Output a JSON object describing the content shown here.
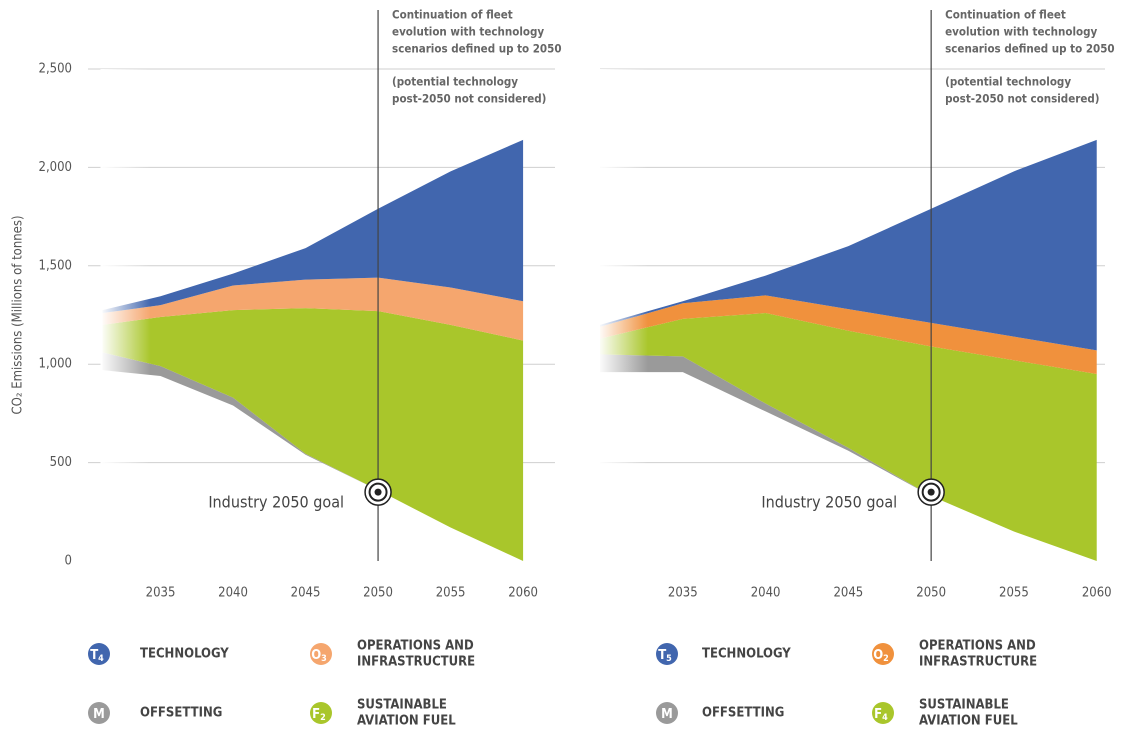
{
  "chart_data": [
    {
      "type": "stacked_area",
      "y_label": "CO₂ Emissions (Millions of tonnes)",
      "x": [
        2031,
        2035,
        2040,
        2045,
        2050,
        2055,
        2060
      ],
      "xlim": [
        2030,
        2062.2
      ],
      "xticks": [
        2035,
        2040,
        2045,
        2050,
        2055,
        2060
      ],
      "ylim": [
        0,
        2500
      ],
      "yticks": [
        0,
        500,
        {
          "value": 1000,
          "label": "1,000"
        },
        {
          "value": 1500,
          "label": "1,500"
        },
        {
          "value": 2000,
          "label": "2,000"
        },
        {
          "value": 2500,
          "label": "2,500"
        }
      ],
      "show_ytick_labels": true,
      "grid": true,
      "net_emissions": [
        970,
        940,
        790,
        540,
        360,
        170,
        0
      ],
      "series": [
        {
          "name": "OFFSETTING",
          "badge": "M",
          "color": "#9a9a9a",
          "values": [
            90,
            50,
            40,
            5,
            0,
            0,
            0
          ]
        },
        {
          "name": [
            "SUSTAINABLE",
            "AVIATION FUEL"
          ],
          "badge": "F",
          "badge_sub": "2",
          "color": "#a9c62b",
          "values": [
            140,
            250,
            445,
            740,
            910,
            1030,
            1120
          ]
        },
        {
          "name": [
            "OPERATIONS AND",
            "INFRASTRUCTURE"
          ],
          "badge": "O",
          "badge_sub": "3",
          "color": "#f5a66e",
          "values": [
            60,
            60,
            125,
            145,
            170,
            190,
            200
          ]
        },
        {
          "name": "TECHNOLOGY",
          "badge": "T",
          "badge_sub": "4",
          "color": "#4166ae",
          "values": [
            15,
            45,
            60,
            160,
            350,
            590,
            820
          ]
        }
      ],
      "vline_x": 2050,
      "annotation": [
        "Continuation of fleet",
        "evolution with technology",
        "scenarios defined up to 2050",
        "(potential technology",
        "post-2050 not considered)"
      ],
      "goal_label": "Industry 2050 goal",
      "goal_x": 2050,
      "goal_value": 350
    },
    {
      "type": "stacked_area",
      "x": [
        2030,
        2035,
        2040,
        2045,
        2050,
        2055,
        2060
      ],
      "xlim": [
        2030,
        2060.5
      ],
      "xticks": [
        2035,
        2040,
        2045,
        2050,
        2055,
        2060
      ],
      "ylim": [
        0,
        2500
      ],
      "yticks": [
        0,
        500,
        1000,
        1500,
        2000,
        2500
      ],
      "show_ytick_labels": false,
      "grid": true,
      "net_emissions": [
        960,
        960,
        760,
        560,
        330,
        150,
        0
      ],
      "series": [
        {
          "name": "OFFSETTING",
          "badge": "M",
          "color": "#9a9a9a",
          "values": [
            90,
            80,
            40,
            15,
            0,
            0,
            0
          ]
        },
        {
          "name": [
            "SUSTAINABLE",
            "AVIATION FUEL"
          ],
          "badge": "F",
          "badge_sub": "4",
          "color": "#a9c62b",
          "values": [
            80,
            190,
            460,
            595,
            760,
            870,
            950
          ]
        },
        {
          "name": [
            "OPERATIONS AND",
            "INFRASTRUCTURE"
          ],
          "badge": "O",
          "badge_sub": "2",
          "color": "#f0913d",
          "values": [
            60,
            80,
            90,
            110,
            120,
            120,
            120
          ]
        },
        {
          "name": "TECHNOLOGY",
          "badge": "T",
          "badge_sub": "5",
          "color": "#4166ae",
          "values": [
            10,
            10,
            100,
            320,
            580,
            840,
            1070
          ]
        }
      ],
      "vline_x": 2050,
      "annotation": [
        "Continuation of fleet",
        "evolution with technology",
        "scenarios defined up to 2050",
        "(potential technology",
        "post-2050 not considered)"
      ],
      "goal_label": "Industry 2050 goal",
      "goal_x": 2050,
      "goal_value": 350
    }
  ]
}
